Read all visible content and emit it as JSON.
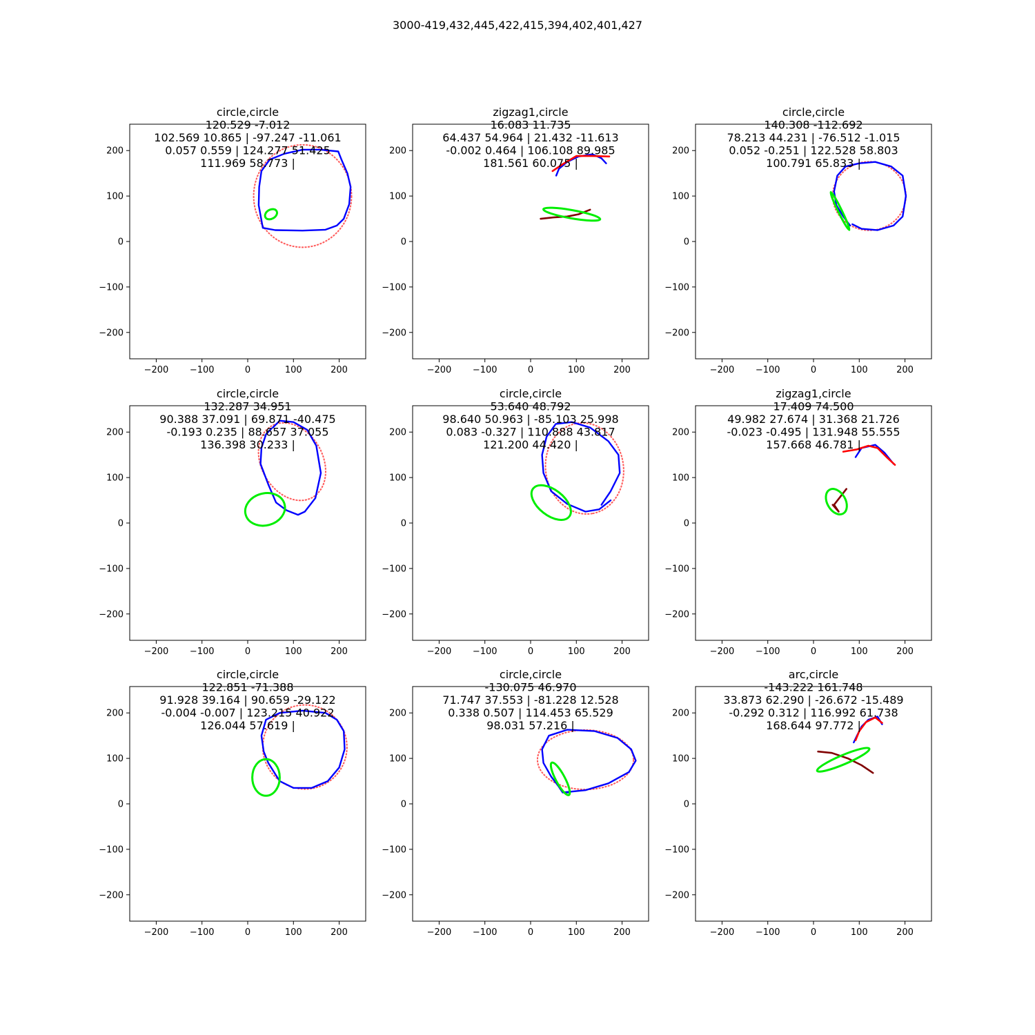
{
  "suptitle": "3000-419,432,445,422,415,394,402,401,427",
  "colors": {
    "green": "#00ee00",
    "blue": "#0000ff",
    "red": "#ff0000",
    "dark_red": "#800000",
    "purple": "#800080"
  },
  "chart_data": [
    {
      "type": "line",
      "title_lines": [
        "circle,circle",
        "120.529 -7.012",
        "102.569 10.865 | -97.247 -11.061",
        "0.057 0.559 | 124.277 51.425",
        "111.969 58.773 |"
      ],
      "xlim": [
        -258,
        258
      ],
      "ylim": [
        258,
        -258
      ],
      "xticks": [
        -200,
        -100,
        0,
        100,
        200
      ],
      "yticks": [
        -200,
        -100,
        0,
        100,
        200
      ],
      "ellipses": [
        {
          "color": "green",
          "cx": 51,
          "cy": 60,
          "rx": 14,
          "ry": 10,
          "angle": -30
        },
        {
          "color": "red",
          "cx": 120,
          "cy": 100,
          "rx": 107,
          "ry": 112,
          "angle": 0
        }
      ],
      "curves": [
        {
          "color": "blue",
          "points": [
            [
              33,
              30
            ],
            [
              60,
              25
            ],
            [
              120,
              24
            ],
            [
              170,
              26
            ],
            [
              195,
              35
            ],
            [
              210,
              50
            ],
            [
              222,
              82
            ],
            [
              225,
              120
            ],
            [
              218,
              150
            ],
            [
              205,
              180
            ],
            [
              198,
              198
            ],
            [
              160,
              202
            ],
            [
              120,
              202
            ],
            [
              80,
              193
            ],
            [
              48,
              180
            ],
            [
              30,
              155
            ],
            [
              25,
              120
            ],
            [
              24,
              80
            ],
            [
              33,
              30
            ]
          ]
        }
      ]
    },
    {
      "type": "line",
      "title_lines": [
        "zigzag1,circle",
        "16.083 11.735",
        "64.437 54.964 | 21.432 -11.613",
        "-0.002 0.464 | 106.108 89.985",
        "181.561 60.075 |"
      ],
      "xlim": [
        -258,
        258
      ],
      "ylim": [
        258,
        -258
      ],
      "xticks": [
        -200,
        -100,
        0,
        100,
        200
      ],
      "yticks": [
        -200,
        -100,
        0,
        100,
        200
      ],
      "ellipses": [
        {
          "color": "green",
          "cx": 90,
          "cy": 60,
          "rx": 63,
          "ry": 9,
          "angle": 10
        }
      ],
      "curves": [
        {
          "color": "dark_red",
          "points": [
            [
              22,
              50
            ],
            [
              50,
              53
            ],
            [
              80,
              55
            ],
            [
              105,
              60
            ],
            [
              130,
              70
            ]
          ]
        },
        {
          "color": "blue",
          "points": [
            [
              56,
              145
            ],
            [
              62,
              160
            ],
            [
              80,
              175
            ],
            [
              105,
              187
            ],
            [
              135,
              192
            ],
            [
              155,
              183
            ],
            [
              165,
              172
            ]
          ]
        },
        {
          "color": "red",
          "points": [
            [
              48,
              155
            ],
            [
              70,
              170
            ],
            [
              100,
              188
            ],
            [
              135,
              188
            ],
            [
              172,
              187
            ]
          ]
        }
      ]
    },
    {
      "type": "line",
      "title_lines": [
        "circle,circle",
        "140.308 -112.692",
        "78.213 44.231 | -76.512 -1.015",
        "0.052 -0.251 | 122.528 58.803",
        "100.791 65.833 |"
      ],
      "xlim": [
        -258,
        258
      ],
      "ylim": [
        258,
        -258
      ],
      "xticks": [
        -200,
        -100,
        0,
        100,
        200
      ],
      "yticks": [
        -200,
        -100,
        0,
        100,
        200
      ],
      "ellipses": [
        {
          "color": "red",
          "cx": 122,
          "cy": 100,
          "rx": 80,
          "ry": 75,
          "angle": 0
        },
        {
          "color": "green",
          "cx": 58,
          "cy": 67,
          "rx": 46,
          "ry": 4,
          "angle": 64
        }
      ],
      "curves": [
        {
          "color": "blue",
          "points": [
            [
              80,
              35
            ],
            [
              65,
              55
            ],
            [
              50,
              80
            ],
            [
              45,
              110
            ],
            [
              52,
              145
            ],
            [
              70,
              165
            ],
            [
              100,
              172
            ],
            [
              135,
              175
            ],
            [
              170,
              165
            ],
            [
              195,
              145
            ],
            [
              202,
              100
            ],
            [
              195,
              55
            ],
            [
              175,
              35
            ],
            [
              140,
              25
            ],
            [
              105,
              28
            ],
            [
              85,
              38
            ]
          ]
        }
      ]
    },
    {
      "type": "line",
      "title_lines": [
        "circle,circle",
        "132.287 34.951",
        "90.388 37.091 | 69.871 -40.475",
        "-0.193 0.235 | 88.657 37.055",
        "136.398 30.233 |"
      ],
      "xlim": [
        -258,
        258
      ],
      "ylim": [
        258,
        -258
      ],
      "xticks": [
        -200,
        -100,
        0,
        100,
        200
      ],
      "yticks": [
        -200,
        -100,
        0,
        100,
        200
      ],
      "ellipses": [
        {
          "color": "green",
          "cx": 38,
          "cy": 30,
          "rx": 44,
          "ry": 35,
          "angle": -15
        },
        {
          "color": "red",
          "cx": 97,
          "cy": 135,
          "rx": 90,
          "ry": 67,
          "angle": 60
        }
      ],
      "curves": [
        {
          "color": "blue",
          "points": [
            [
              52,
              208
            ],
            [
              40,
              195
            ],
            [
              30,
              165
            ],
            [
              28,
              130
            ],
            [
              45,
              85
            ],
            [
              62,
              45
            ],
            [
              85,
              28
            ],
            [
              110,
              18
            ],
            [
              125,
              25
            ],
            [
              148,
              55
            ],
            [
              160,
              110
            ],
            [
              150,
              170
            ],
            [
              130,
              205
            ],
            [
              100,
              222
            ],
            [
              70,
              225
            ],
            [
              55,
              210
            ]
          ]
        }
      ]
    },
    {
      "type": "line",
      "title_lines": [
        "circle,circle",
        "53.640 48.792",
        "98.640 50.963 | -85.103 25.998",
        "0.083 -0.327 | 110.888 43.817",
        "121.200 44.420 |"
      ],
      "xlim": [
        -258,
        258
      ],
      "ylim": [
        258,
        -258
      ],
      "xticks": [
        -200,
        -100,
        0,
        100,
        200
      ],
      "yticks": [
        -200,
        -100,
        0,
        100,
        200
      ],
      "ellipses": [
        {
          "color": "green",
          "cx": 45,
          "cy": 45,
          "rx": 50,
          "ry": 28,
          "angle": 38
        },
        {
          "color": "red",
          "cx": 118,
          "cy": 120,
          "rx": 100,
          "ry": 85,
          "angle": 80
        }
      ],
      "curves": [
        {
          "color": "blue",
          "points": [
            [
              155,
              40
            ],
            [
              175,
              70
            ],
            [
              195,
              110
            ],
            [
              192,
              150
            ],
            [
              170,
              180
            ],
            [
              130,
              210
            ],
            [
              90,
              222
            ],
            [
              55,
              218
            ],
            [
              35,
              190
            ],
            [
              25,
              150
            ],
            [
              28,
              110
            ],
            [
              45,
              70
            ],
            [
              80,
              42
            ],
            [
              120,
              25
            ],
            [
              150,
              30
            ],
            [
              175,
              50
            ]
          ]
        }
      ]
    },
    {
      "type": "line",
      "title_lines": [
        "zigzag1,circle",
        "17.409 74.500",
        "49.982 27.674 | 31.368 21.726",
        "-0.023 -0.495 | 131.948 55.555",
        "157.668 46.781 |"
      ],
      "xlim": [
        -258,
        258
      ],
      "ylim": [
        258,
        -258
      ],
      "xticks": [
        -200,
        -100,
        0,
        100,
        200
      ],
      "yticks": [
        -200,
        -100,
        0,
        100,
        200
      ],
      "ellipses": [
        {
          "color": "green",
          "cx": 50,
          "cy": 47,
          "rx": 30,
          "ry": 20,
          "angle": 60
        }
      ],
      "curves": [
        {
          "color": "dark_red",
          "points": [
            [
              42,
              40
            ],
            [
              55,
              25
            ],
            [
              45,
              40
            ],
            [
              72,
              75
            ]
          ]
        },
        {
          "color": "blue",
          "points": [
            [
              92,
              145
            ],
            [
              105,
              165
            ],
            [
              135,
              172
            ],
            [
              155,
              155
            ],
            [
              175,
              130
            ]
          ]
        },
        {
          "color": "red",
          "points": [
            [
              65,
              157
            ],
            [
              95,
              162
            ],
            [
              120,
              170
            ],
            [
              140,
              165
            ],
            [
              160,
              145
            ],
            [
              178,
              128
            ]
          ]
        }
      ]
    },
    {
      "type": "line",
      "title_lines": [
        "circle,circle",
        "122.851 -71.388",
        "91.928 39.164 | 90.659 -29.122",
        "-0.004 -0.007 | 123.215 40.922",
        "126.044 57.619 |"
      ],
      "xlim": [
        -258,
        258
      ],
      "ylim": [
        258,
        -258
      ],
      "xticks": [
        -200,
        -100,
        0,
        100,
        200
      ],
      "yticks": [
        -200,
        -100,
        0,
        100,
        200
      ],
      "ellipses": [
        {
          "color": "green",
          "cx": 40,
          "cy": 58,
          "rx": 30,
          "ry": 40,
          "angle": 0
        },
        {
          "color": "red",
          "cx": 125,
          "cy": 125,
          "rx": 92,
          "ry": 92,
          "angle": 0
        }
      ],
      "curves": [
        {
          "color": "blue",
          "points": [
            [
              45,
              90
            ],
            [
              70,
              50
            ],
            [
              100,
              35
            ],
            [
              140,
              35
            ],
            [
              175,
              50
            ],
            [
              200,
              80
            ],
            [
              212,
              120
            ],
            [
              210,
              160
            ],
            [
              195,
              185
            ],
            [
              170,
              200
            ],
            [
              120,
              205
            ],
            [
              70,
              200
            ],
            [
              40,
              185
            ],
            [
              30,
              150
            ],
            [
              35,
              115
            ],
            [
              45,
              90
            ]
          ]
        }
      ]
    },
    {
      "type": "line",
      "title_lines": [
        "circle,circle",
        "-130.075 46.970",
        "71.747 37.553 | -81.228 12.528",
        "0.338 0.507 | 114.453 65.529",
        "98.031 57.216 |"
      ],
      "xlim": [
        -258,
        258
      ],
      "ylim": [
        258,
        -258
      ],
      "xticks": [
        -200,
        -100,
        0,
        100,
        200
      ],
      "yticks": [
        -200,
        -100,
        0,
        100,
        200
      ],
      "ellipses": [
        {
          "color": "green",
          "cx": 65,
          "cy": 55,
          "rx": 40,
          "ry": 10,
          "angle": 62
        },
        {
          "color": "red",
          "cx": 120,
          "cy": 97,
          "rx": 105,
          "ry": 65,
          "angle": 0
        }
      ],
      "curves": [
        {
          "color": "blue",
          "points": [
            [
              70,
              25
            ],
            [
              120,
              30
            ],
            [
              170,
              45
            ],
            [
              215,
              70
            ],
            [
              230,
              95
            ],
            [
              220,
              120
            ],
            [
              190,
              145
            ],
            [
              140,
              160
            ],
            [
              80,
              163
            ],
            [
              40,
              150
            ],
            [
              25,
              120
            ],
            [
              28,
              90
            ],
            [
              45,
              60
            ],
            [
              60,
              40
            ],
            [
              70,
              25
            ],
            [
              85,
              25
            ]
          ]
        }
      ]
    },
    {
      "type": "line",
      "title_lines": [
        "arc,circle",
        "-143.222 161.748",
        "33.873 62.290 | -26.672 -15.489",
        "-0.292 0.312 | 116.992 61.738",
        "168.644 97.772 |"
      ],
      "xlim": [
        -258,
        258
      ],
      "ylim": [
        258,
        -258
      ],
      "xticks": [
        -200,
        -100,
        0,
        100,
        200
      ],
      "yticks": [
        -200,
        -100,
        0,
        100,
        200
      ],
      "ellipses": [
        {
          "color": "green",
          "cx": 65,
          "cy": 97,
          "rx": 62,
          "ry": 10,
          "angle": -23
        }
      ],
      "curves": [
        {
          "color": "dark_red",
          "points": [
            [
              10,
              115
            ],
            [
              40,
              112
            ],
            [
              75,
              100
            ],
            [
              105,
              85
            ],
            [
              130,
              68
            ]
          ]
        },
        {
          "color": "blue",
          "points": [
            [
              88,
              135
            ],
            [
              95,
              150
            ],
            [
              105,
              170
            ],
            [
              120,
              185
            ],
            [
              140,
              192
            ],
            [
              150,
              175
            ]
          ]
        },
        {
          "color": "red",
          "points": [
            [
              92,
              140
            ],
            [
              100,
              160
            ],
            [
              115,
              180
            ],
            [
              135,
              190
            ],
            [
              150,
              178
            ]
          ]
        }
      ]
    }
  ]
}
